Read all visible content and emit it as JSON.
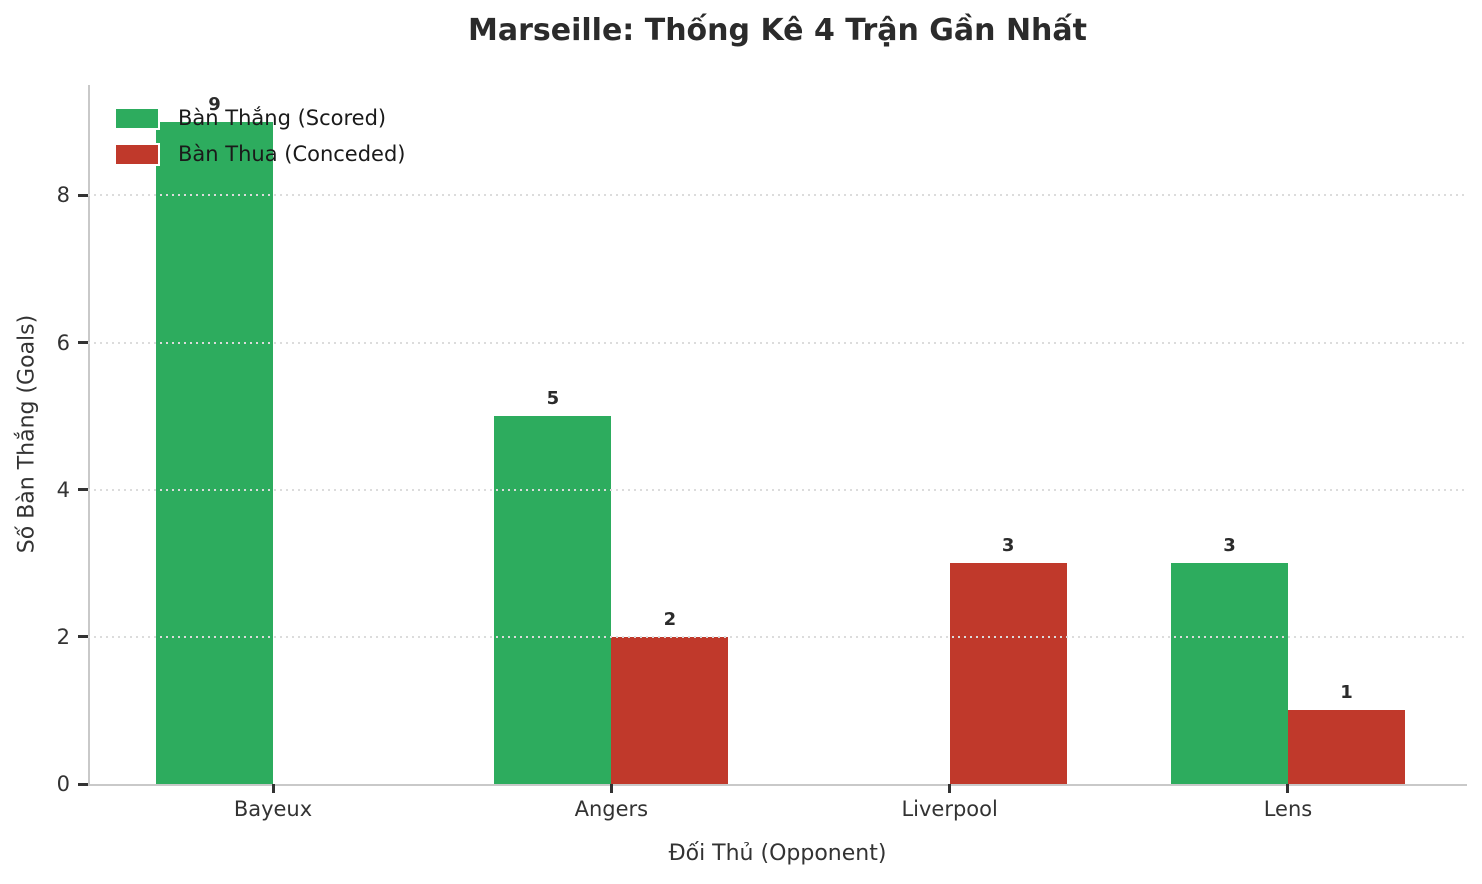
{
  "chart_data": {
    "type": "bar",
    "title": "Marseille: Thống Kê 4 Trận Gần Nhất",
    "xlabel": "Đối Thủ (Opponent)",
    "ylabel": "Số Bàn Thắng (Goals)",
    "categories": [
      "Bayeux",
      "Angers",
      "Liverpool",
      "Lens"
    ],
    "series": [
      {
        "name": "Bàn Thắng (Scored)",
        "color": "#2dac5e",
        "values": [
          9,
          5,
          0,
          3
        ]
      },
      {
        "name": "Bàn Thua (Conceded)",
        "color": "#c0392b",
        "values": [
          0,
          2,
          3,
          1
        ]
      }
    ],
    "yticks": [
      0,
      2,
      4,
      6,
      8
    ],
    "ylim": [
      0,
      9.5
    ],
    "grid": "horizontal-dotted",
    "legend_position": "upper-left",
    "value_labels": true,
    "colors": {
      "scored": "#2dac5e",
      "conceded": "#c0392b",
      "gridline": "#dcdcdc",
      "spine": "#c9c9c9",
      "text": "#333333"
    }
  }
}
